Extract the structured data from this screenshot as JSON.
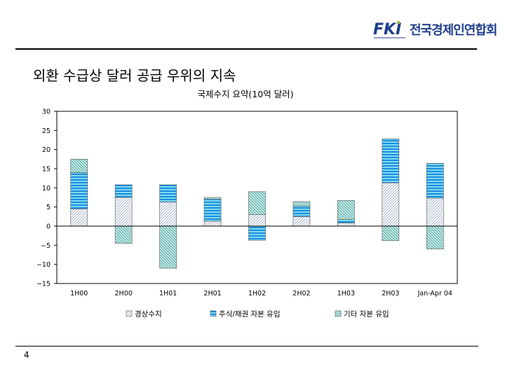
{
  "header": {
    "logo_mark": "FKI",
    "org_name": "전국경제인연합회"
  },
  "slide": {
    "title": "외환 수급상 달러 공급 우위의 지속",
    "page_number": "4"
  },
  "colors": {
    "stripe_blue": "#1a8fe0",
    "stripe_cyan": "#7fd9ef",
    "hatch_green": "#2ca19a",
    "dots": "#7a8fb0",
    "logo_blue": "#1f3f8c",
    "logo_green": "#8cc63f"
  },
  "chart_data": {
    "type": "bar",
    "stacked": true,
    "title": "국제수지 요약(10억 달러)",
    "categories": [
      "1H00",
      "2H00",
      "1H01",
      "2H01",
      "1H02",
      "2H02",
      "1H03",
      "2H03",
      "Jan-Apr 04"
    ],
    "series": [
      {
        "name": "경상수지",
        "pattern": "dots",
        "values": [
          4.5,
          7.5,
          6.3,
          1.3,
          3.0,
          2.5,
          0.8,
          11.3,
          7.3
        ]
      },
      {
        "name": "주식/채권 자본 유입",
        "pattern": "stripes",
        "values": [
          9.5,
          3.3,
          4.5,
          5.7,
          -3.7,
          2.7,
          0.9,
          11.5,
          9.1
        ]
      },
      {
        "name": "기타 자본 유입",
        "pattern": "hatch",
        "values": [
          3.5,
          -4.5,
          -11.0,
          0.5,
          6.0,
          1.2,
          5.0,
          -3.8,
          -6.0
        ]
      }
    ],
    "ylim": [
      -15,
      30
    ],
    "yticks": [
      30,
      25,
      20,
      15,
      10,
      5,
      0,
      -5,
      -10,
      -15
    ],
    "grid": false,
    "legend_position": "bottom"
  }
}
